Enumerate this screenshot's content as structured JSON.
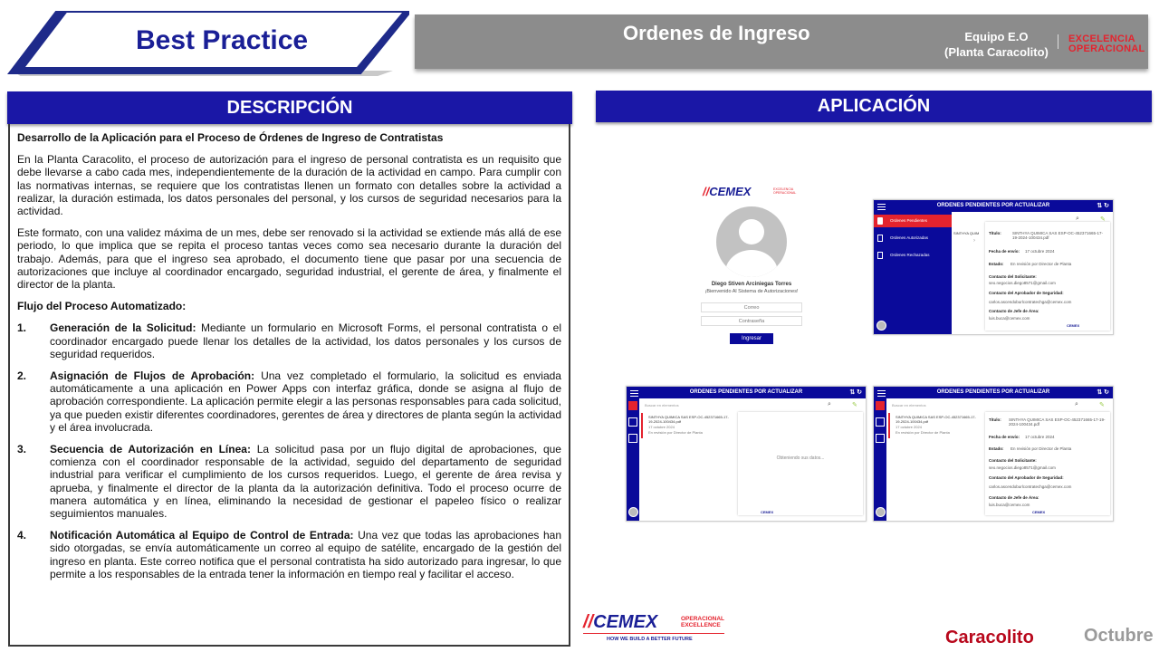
{
  "header": {
    "badge": "Best Practice",
    "title": "Ordenes de Ingreso",
    "team_line1": "Equipo E.O",
    "team_line2": "(Planta Caracolito)",
    "excelencia_line1": "EXCELENCIA",
    "excelencia_line2": "OPERACIONAL"
  },
  "descripcion": {
    "heading": "DESCRIPCIÓN",
    "subtitle": "Desarrollo de la Aplicación para el Proceso de Órdenes de Ingreso de Contratistas",
    "p1": "En la Planta Caracolito, el proceso de autorización para el ingreso de personal contratista es un requisito que debe llevarse a cabo cada mes, independientemente de la duración de la actividad en campo. Para cumplir con las normativas internas, se requiere que los contratistas llenen un formato con detalles sobre la actividad a realizar, la duración estimada, los datos personales del personal, y los cursos de seguridad necesarios para la actividad.",
    "p2": "Este formato, con una validez máxima de un mes, debe ser renovado si la actividad se extiende más allá de ese periodo, lo que implica que se repita el proceso tantas veces como sea necesario durante la duración del trabajo. Además, para que el ingreso sea aprobado, el documento tiene que pasar por una secuencia de autorizaciones que incluye al coordinador encargado, seguridad industrial, el gerente de área, y finalmente el director de la planta.",
    "flow_title": "Flujo del Proceso Automatizado:",
    "steps": [
      {
        "num": "1.",
        "title": "Generación de la Solicitud:",
        "text": " Mediante un formulario en Microsoft Forms, el personal contratista o el coordinador encargado puede llenar los detalles de la actividad, los datos personales y los cursos de seguridad requeridos."
      },
      {
        "num": "2.",
        "title": "Asignación de Flujos de Aprobación:",
        "text": " Una vez completado el formulario, la solicitud es enviada automáticamente a una aplicación en Power Apps con interfaz gráfica, donde se asigna al flujo de aprobación correspondiente. La aplicación permite elegir a las personas responsables para cada solicitud, ya que pueden existir diferentes coordinadores, gerentes de área y directores de planta según la actividad y el área involucrada."
      },
      {
        "num": "3.",
        "title": "Secuencia de Autorización en Línea:",
        "text": " La solicitud pasa por un flujo digital de aprobaciones, que comienza con el coordinador responsable de la actividad, seguido del departamento de seguridad industrial para verificar el cumplimiento de los cursos requeridos. Luego, el gerente de área revisa y aprueba, y finalmente el director de la planta da la autorización definitiva. Todo el proceso ocurre de manera automática y en línea, eliminando la necesidad de gestionar el papeleo físico o realizar seguimientos manuales."
      },
      {
        "num": "4.",
        "title": "Notificación Automática al Equipo de Control de Entrada:",
        "text": " Una vez que todas las aprobaciones han sido otorgadas, se envía automáticamente un correo al equipo de satélite, encargado de la gestión del ingreso en planta. Este correo notifica que el personal contratista ha sido autorizado para ingresar, lo que permite a los responsables de la entrada tener la información en tiempo real y facilitar el acceso."
      }
    ]
  },
  "aplicacion": {
    "heading": "APLICACIÓN",
    "login": {
      "brand": "CEMEX",
      "brand_tag": "EXCELENCIA OPERACIONAL",
      "user_name": "Diego Stiven Arciniegas Torres",
      "welcome": "¡Bienvenido Al Sistema de Autorizaciones!",
      "email_placeholder": "Correo",
      "password_placeholder": "Contraseña",
      "login_button": "Ingresar"
    },
    "screen_title": "ORDENES PENDIENTES POR ACTUALIZAR",
    "menu": {
      "pendientes": "Ordenes Pendientes",
      "autorizadas": "Ordenes Autorizadas",
      "rechazadas": "Ordenes Rechazadas"
    },
    "search_placeholder": "Buscar en elementos",
    "list_item": {
      "title": "SINTHYA QUIMICA SAS ESP-OC-452371665-17-19-2024-100434.pdf",
      "date": "17 octubre 2024",
      "status": "En revisión por Director de Planta"
    },
    "detail": {
      "titulo_label": "Título:",
      "titulo_value": "SINTHYA QUIMICA SAS ESP-OC-452371665-17-19-2024-100434.pdf",
      "fecha_label": "Fecha de envío:",
      "fecha_value": "17 octubre 2024",
      "estado_label": "Estado:",
      "estado_value": "En revisión por Director de Planta",
      "solicitante_label": "Contacto del Solicitante:",
      "solicitante_value": "seo.negocios.diego8571@gmail.com",
      "seguridad_label": "Contacto del Aprobador de Seguridad:",
      "seguridad_value": "carlos.ascendoburlcontratechga@cemex.com",
      "jefe_label": "Contacto de Jefe de Área:",
      "jefe_value": "luis.buca@cemex.com"
    },
    "loading": "Obteniendo sus datos...",
    "footer_brand": "CEMEX"
  },
  "footer": {
    "brand": "CEMEX",
    "brand_tag1": "OPERACIONAL",
    "brand_tag2": "EXCELLENCE",
    "slogan": "HOW WE BUILD A BETTER FUTURE",
    "plant": "Caracolito",
    "month": "Octubre"
  },
  "colors": {
    "navy": "#1a17a6",
    "brand_blue": "#1a1f96",
    "red": "#e4232e",
    "gray_bar": "#8c8c8c"
  }
}
